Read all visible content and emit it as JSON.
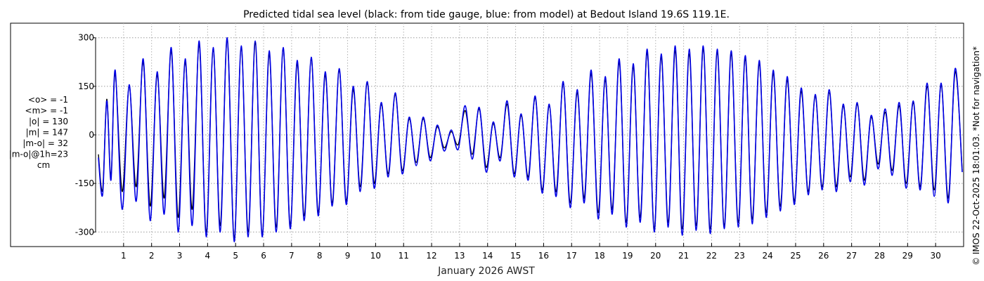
{
  "chart_data": {
    "type": "line",
    "title": "Predicted tidal sea level (black: from tide gauge, blue: from model) at Bedout Island 19.6S 119.1E.",
    "xlabel": "January 2026 AWST",
    "ylabel": "",
    "xlim": [
      0,
      31
    ],
    "ylim": [
      -345,
      345
    ],
    "x_ticks": [
      1,
      2,
      3,
      4,
      5,
      6,
      7,
      8,
      9,
      10,
      11,
      12,
      13,
      14,
      15,
      16,
      17,
      18,
      19,
      20,
      21,
      22,
      23,
      24,
      25,
      26,
      27,
      28,
      29,
      30
    ],
    "x_tick_labels": [
      "1",
      "2",
      "3",
      "4",
      "5",
      "6",
      "7",
      "8",
      "9",
      "10",
      "11",
      "12",
      "13",
      "14",
      "15",
      "16",
      "17",
      "18",
      "19",
      "20",
      "21",
      "22",
      "23",
      "24",
      "25",
      "26",
      "27",
      "28",
      "29",
      "30"
    ],
    "y_ticks": [
      300,
      150,
      0,
      -150,
      -300
    ],
    "y_tick_labels": [
      "300",
      "150",
      "0",
      "-150",
      "-300"
    ],
    "grid": true,
    "stats": [
      "<o> = -1",
      "<m> = -1",
      "|o| = 130",
      "|m| = 147",
      "|m-o| = 32",
      "|m-o|@1h=23",
      "cm"
    ],
    "credit": "© IMOS 22-Oct-2025 18:01:03.  *Not for navigation*",
    "series": [
      {
        "color": "#000000",
        "x": [
          0.1,
          0.25,
          0.4,
          0.55,
          0.7,
          0.95,
          1.2,
          1.45,
          1.7,
          1.95,
          2.2,
          2.45,
          2.7,
          2.95,
          3.2,
          3.45,
          3.7,
          3.95,
          4.2,
          4.45,
          4.7,
          4.95,
          5.2,
          5.45,
          5.7,
          5.95,
          6.2,
          6.45,
          6.7,
          6.95,
          7.2,
          7.45,
          7.7,
          7.95,
          8.2,
          8.45,
          8.7,
          8.95,
          9.2,
          9.45,
          9.7,
          9.95,
          10.2,
          10.45,
          10.7,
          10.95,
          11.2,
          11.45,
          11.7,
          11.95,
          12.2,
          12.45,
          12.7,
          12.95,
          13.2,
          13.45,
          13.7,
          13.95,
          14.2,
          14.45,
          14.7,
          14.95,
          15.2,
          15.45,
          15.7,
          15.95,
          16.2,
          16.45,
          16.7,
          16.95,
          17.2,
          17.45,
          17.7,
          17.95,
          18.2,
          18.45,
          18.7,
          18.95,
          19.2,
          19.45,
          19.7,
          19.95,
          20.2,
          20.45,
          20.7,
          20.95,
          21.2,
          21.45,
          21.7,
          21.95,
          22.2,
          22.45,
          22.7,
          22.95,
          23.2,
          23.45,
          23.7,
          23.95,
          24.2,
          24.45,
          24.7,
          24.95,
          25.2,
          25.45,
          25.7,
          25.95,
          26.2,
          26.45,
          26.7,
          26.95,
          27.2,
          27.45,
          27.7,
          27.95,
          28.2,
          28.45,
          28.7,
          28.95,
          29.2,
          29.45,
          29.7,
          29.95,
          30.2,
          30.45,
          30.7,
          30.95
        ],
        "values": [
          -60,
          -170,
          110,
          -130,
          190,
          -175,
          150,
          -160,
          225,
          -220,
          185,
          -195,
          260,
          -255,
          225,
          -230,
          280,
          -300,
          265,
          -280,
          295,
          -320,
          270,
          -300,
          285,
          -310,
          250,
          -285,
          265,
          -280,
          220,
          -250,
          235,
          -240,
          185,
          -210,
          200,
          -205,
          140,
          -160,
          160,
          -150,
          95,
          -120,
          125,
          -110,
          50,
          -85,
          50,
          -70,
          25,
          -40,
          10,
          -30,
          75,
          -60,
          80,
          -100,
          35,
          -70,
          95,
          -120,
          60,
          -130,
          115,
          -170,
          90,
          -175,
          160,
          -210,
          130,
          -195,
          190,
          -240,
          170,
          -230,
          225,
          -270,
          210,
          -255,
          255,
          -290,
          240,
          -270,
          260,
          -290,
          250,
          -280,
          265,
          -290,
          255,
          -280,
          250,
          -270,
          235,
          -260,
          220,
          -240,
          190,
          -220,
          170,
          -205,
          135,
          -175,
          120,
          -160,
          130,
          -160,
          90,
          -130,
          95,
          -140,
          55,
          -90,
          70,
          -110,
          90,
          -150,
          100,
          -160,
          150,
          -170,
          155,
          -195,
          195,
          -110
        ]
      },
      {
        "color": "#0000e6",
        "x": [
          0.1,
          0.25,
          0.4,
          0.55,
          0.7,
          0.95,
          1.2,
          1.45,
          1.7,
          1.95,
          2.2,
          2.45,
          2.7,
          2.95,
          3.2,
          3.45,
          3.7,
          3.95,
          4.2,
          4.45,
          4.7,
          4.95,
          5.2,
          5.45,
          5.7,
          5.95,
          6.2,
          6.45,
          6.7,
          6.95,
          7.2,
          7.45,
          7.7,
          7.95,
          8.2,
          8.45,
          8.7,
          8.95,
          9.2,
          9.45,
          9.7,
          9.95,
          10.2,
          10.45,
          10.7,
          10.95,
          11.2,
          11.45,
          11.7,
          11.95,
          12.2,
          12.45,
          12.7,
          12.95,
          13.2,
          13.45,
          13.7,
          13.95,
          14.2,
          14.45,
          14.7,
          14.95,
          15.2,
          15.45,
          15.7,
          15.95,
          16.2,
          16.45,
          16.7,
          16.95,
          17.2,
          17.45,
          17.7,
          17.95,
          18.2,
          18.45,
          18.7,
          18.95,
          19.2,
          19.45,
          19.7,
          19.95,
          20.2,
          20.45,
          20.7,
          20.95,
          21.2,
          21.45,
          21.7,
          21.95,
          22.2,
          22.45,
          22.7,
          22.95,
          23.2,
          23.45,
          23.7,
          23.95,
          24.2,
          24.45,
          24.7,
          24.95,
          25.2,
          25.45,
          25.7,
          25.95,
          26.2,
          26.45,
          26.7,
          26.95,
          27.2,
          27.45,
          27.7,
          27.95,
          28.2,
          28.45,
          28.7,
          28.95,
          29.2,
          29.45,
          29.7,
          29.95,
          30.2,
          30.45,
          30.7,
          30.95
        ],
        "values": [
          -70,
          -185,
          105,
          -140,
          200,
          -230,
          155,
          -205,
          235,
          -265,
          195,
          -245,
          270,
          -300,
          235,
          -280,
          290,
          -315,
          270,
          -300,
          300,
          -330,
          275,
          -315,
          290,
          -315,
          260,
          -300,
          270,
          -290,
          230,
          -265,
          240,
          -250,
          195,
          -220,
          205,
          -215,
          150,
          -175,
          165,
          -165,
          100,
          -130,
          130,
          -120,
          55,
          -95,
          55,
          -80,
          30,
          -50,
          15,
          -45,
          90,
          -75,
          85,
          -115,
          40,
          -80,
          105,
          -130,
          65,
          -140,
          120,
          -180,
          95,
          -190,
          165,
          -225,
          140,
          -210,
          200,
          -260,
          180,
          -245,
          235,
          -285,
          220,
          -270,
          265,
          -300,
          250,
          -285,
          275,
          -310,
          265,
          -295,
          275,
          -305,
          265,
          -290,
          260,
          -285,
          245,
          -275,
          230,
          -255,
          200,
          -235,
          180,
          -215,
          145,
          -185,
          125,
          -170,
          140,
          -175,
          95,
          -145,
          100,
          -155,
          60,
          -105,
          80,
          -125,
          100,
          -165,
          105,
          -170,
          160,
          -190,
          160,
          -210,
          205,
          -115
        ]
      }
    ]
  }
}
